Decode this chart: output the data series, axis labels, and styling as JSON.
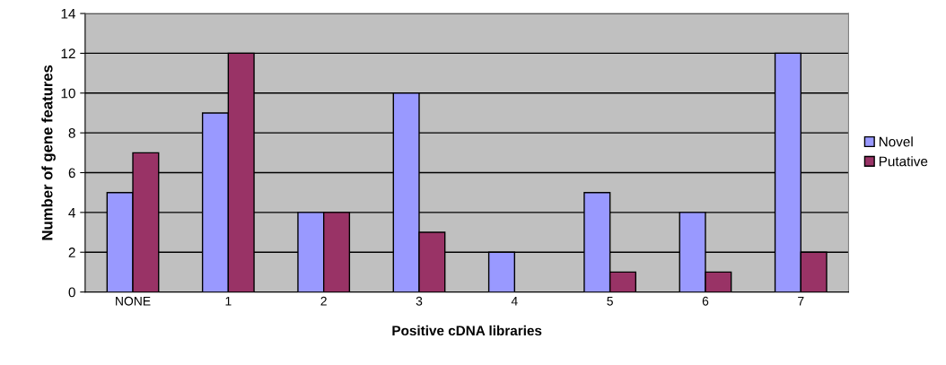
{
  "chart_data": {
    "type": "bar",
    "xlabel": "Positive cDNA libraries",
    "ylabel": "Number of gene features",
    "categories": [
      "NONE",
      "1",
      "2",
      "3",
      "4",
      "5",
      "6",
      "7"
    ],
    "series": [
      {
        "name": "Novel",
        "color": "#9999ff",
        "values": [
          5,
          9,
          4,
          10,
          2,
          5,
          4,
          12
        ]
      },
      {
        "name": "Putative",
        "color": "#993366",
        "values": [
          7,
          12,
          4,
          3,
          0,
          1,
          1,
          2
        ]
      }
    ],
    "ylim": [
      0,
      14
    ],
    "yticks": [
      0,
      2,
      4,
      6,
      8,
      10,
      12,
      14
    ],
    "grid": "y",
    "legend": "right"
  }
}
